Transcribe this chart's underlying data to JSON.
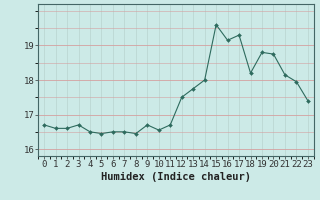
{
  "x": [
    0,
    1,
    2,
    3,
    4,
    5,
    6,
    7,
    8,
    9,
    10,
    11,
    12,
    13,
    14,
    15,
    16,
    17,
    18,
    19,
    20,
    21,
    22,
    23
  ],
  "y": [
    16.7,
    16.6,
    16.6,
    16.7,
    16.5,
    16.45,
    16.5,
    16.5,
    16.45,
    16.7,
    16.55,
    16.7,
    17.5,
    17.75,
    18.0,
    19.6,
    19.15,
    19.3,
    18.2,
    18.8,
    18.75,
    18.15,
    17.95,
    17.4
  ],
  "line_color": "#2e6b5e",
  "marker": "D",
  "markersize": 2.0,
  "linewidth": 0.8,
  "xlabel": "Humidex (Indice chaleur)",
  "ylim": [
    15.8,
    20.2
  ],
  "yticks": [
    16,
    17,
    18,
    19
  ],
  "xlim": [
    -0.5,
    23.5
  ],
  "bg_color": "#cceae7",
  "grid_color_h": "#d4a0a0",
  "grid_color_v": "#b8d4d0",
  "xlabel_fontsize": 7.5,
  "tick_fontsize": 6.5
}
